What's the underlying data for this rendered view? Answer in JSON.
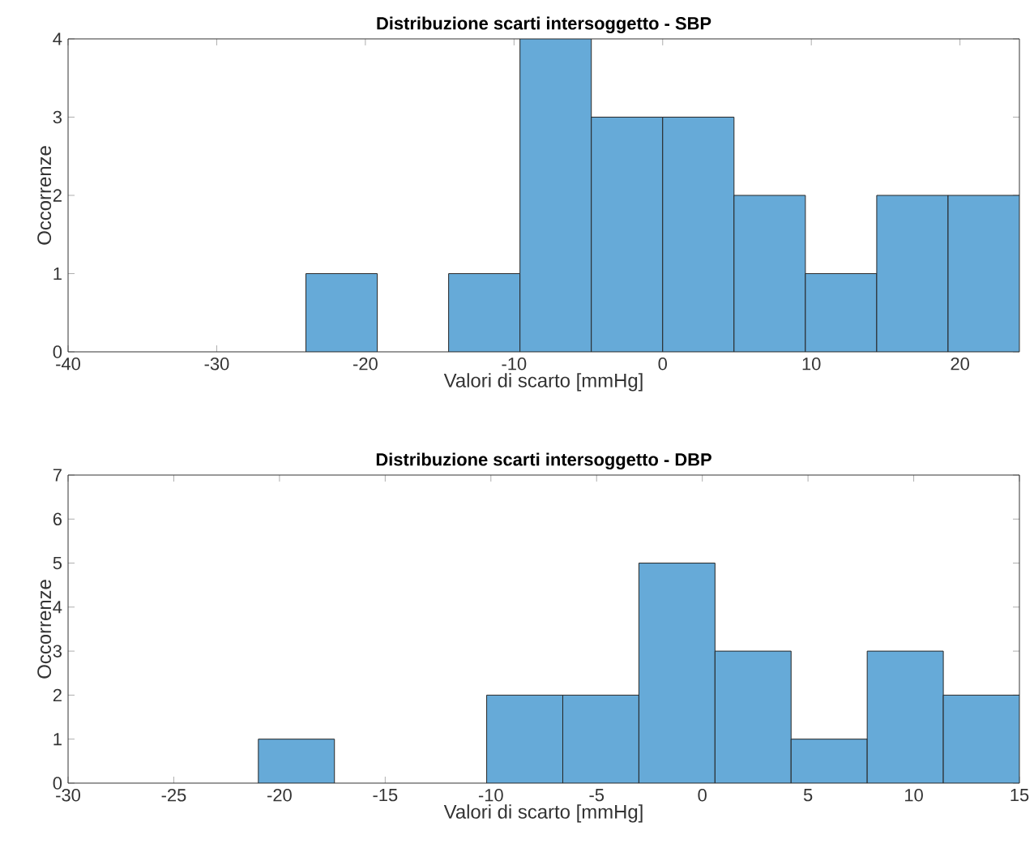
{
  "chart_data": [
    {
      "type": "histogram",
      "title": "Distribuzione scarti intersoggetto - SBP",
      "xlabel": "Valori di scarto [mmHg]",
      "ylabel": "Occorrenze",
      "bins": [
        -24,
        -19.2,
        -14.4,
        -9.6,
        -4.8,
        0,
        4.8,
        9.6,
        14.4,
        19.2,
        24
      ],
      "values": [
        1,
        0,
        1,
        4,
        3,
        3,
        2,
        1,
        2,
        2
      ],
      "color": "#66aad8",
      "xlim": [
        -40,
        24
      ],
      "ylim": [
        0,
        4
      ],
      "xticks": [
        -40,
        -30,
        -20,
        -10,
        0,
        10,
        20
      ],
      "yticks": [
        0,
        1,
        2,
        3,
        4
      ]
    },
    {
      "type": "histogram",
      "title": "Distribuzione scarti intersoggetto - DBP",
      "xlabel": "Valori di scarto [mmHg]",
      "ylabel": "Occorrenze",
      "bins": [
        -21,
        -17.4,
        -13.8,
        -10.2,
        -6.6,
        -3,
        0.6,
        4.2,
        7.8,
        11.4,
        15
      ],
      "values": [
        1,
        0,
        0,
        2,
        2,
        5,
        3,
        1,
        3,
        2
      ],
      "color": "#66aad8",
      "xlim": [
        -30,
        15
      ],
      "ylim": [
        0,
        7
      ],
      "xticks": [
        -30,
        -25,
        -20,
        -15,
        -10,
        -5,
        0,
        5,
        10,
        15
      ],
      "yticks": [
        0,
        1,
        2,
        3,
        4,
        5,
        6,
        7
      ]
    }
  ]
}
